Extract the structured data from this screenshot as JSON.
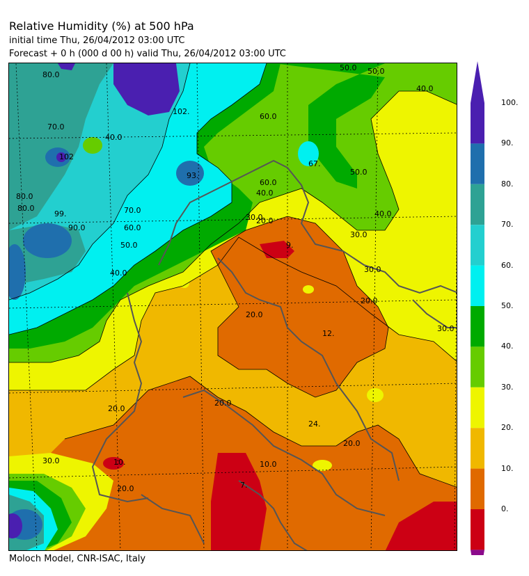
{
  "header": {
    "title": "Relative Humidity (%) at 500 hPa",
    "initial_time": "initial time  Thu, 26/04/2012  03:00 UTC",
    "forecast": "Forecast +   0 h  (000 d 00 h)  valid Thu, 26/04/2012 03:00 UTC"
  },
  "footer": {
    "credit": "Moloch Model, CNR-ISAC, Italy"
  },
  "colorbar": {
    "labels": [
      "100.",
      "90.",
      "80.",
      "70.",
      "60.",
      "50.",
      "40.",
      "30.",
      "20.",
      "10.",
      "0."
    ],
    "colors": [
      "#4a1fb0",
      "#1f6fad",
      "#2ea294",
      "#23cfcf",
      "#00f0f0",
      "#00aa00",
      "#66cc00",
      "#eef500",
      "#f0b800",
      "#e06a00",
      "#cc0014"
    ],
    "over_color": "#4a1fb0",
    "under_color": "#8b0a8b"
  },
  "map": {
    "contour_labels": [
      "80.0",
      "70.0",
      "40.0",
      "102",
      "93.",
      "60.0",
      "50.0",
      "40.0",
      "67.",
      "50.0",
      "40.0",
      "80.0",
      "99.",
      "90.0",
      "80.0",
      "70.0",
      "60.0",
      "50.0",
      "40.0",
      "30.0",
      "20.0",
      "9.",
      "30.0",
      "20.0",
      "20.0",
      "30.0",
      "12.",
      "20.0",
      "24.",
      "20.0",
      "20.0",
      "30.0",
      "10.",
      "20.0",
      "7.",
      "10.0",
      "102.",
      "60.0",
      "50.0",
      "40.0",
      "30.0"
    ]
  }
}
